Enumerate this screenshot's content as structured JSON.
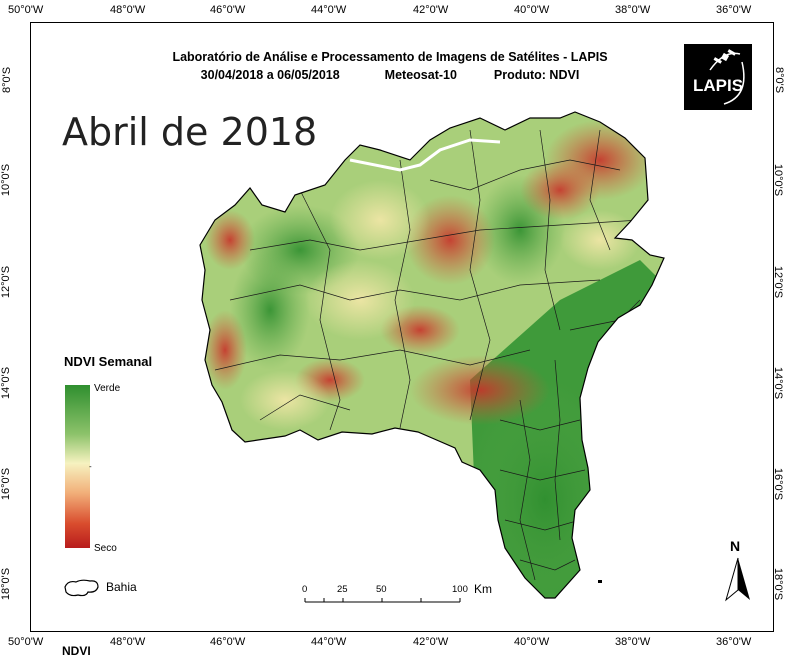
{
  "header": {
    "line1": "Laboratório de Análise e Processamento de Imagens de Satélites - LAPIS",
    "date": "30/04/2018  a 06/05/2018",
    "satellite": "Meteosat-10",
    "product": "Produto: NDVI"
  },
  "big_title": "Abril de 2018",
  "logo_text": "LAPIS",
  "legend": {
    "title": "NDVI Semanal",
    "top": "Verde",
    "bottom": "Seco"
  },
  "scale": {
    "ticks": [
      "0",
      "25",
      "50",
      "100"
    ],
    "unit": "Km"
  },
  "bahia_label": "Bahia",
  "north_label": "N",
  "lon_labels": [
    "50°0'W",
    "48°0'W",
    "46°0'W",
    "44°0'W",
    "42°0'W",
    "40°0'W",
    "38°0'W",
    "36°0'W"
  ],
  "lat_labels": [
    "8°0'S",
    "10°0'S",
    "12°0'S",
    "14°0'S",
    "16°0'S",
    "18°0'S"
  ],
  "bottom_cut_text": "NDVI",
  "colors": {
    "verde": "#2f8f2f",
    "seco": "#b81c1c",
    "neutral": "#f6f2c0"
  }
}
